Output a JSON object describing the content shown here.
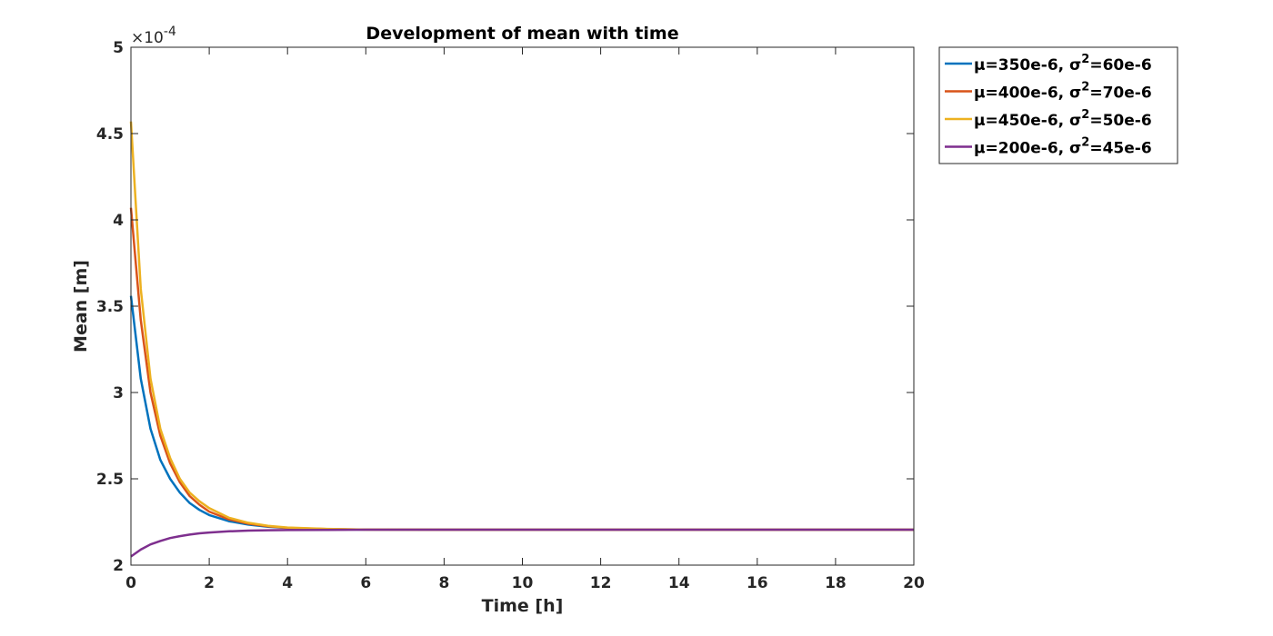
{
  "chart_data": {
    "type": "line",
    "title": "Development of mean with time",
    "xlabel": "Time [h]",
    "ylabel": "Mean [m]",
    "xlim": [
      0,
      20
    ],
    "ylim": [
      2,
      5
    ],
    "xticks": [
      0,
      2,
      4,
      6,
      8,
      10,
      12,
      14,
      16,
      18,
      20
    ],
    "yticks": [
      2,
      2.5,
      3,
      3.5,
      4,
      4.5,
      5
    ],
    "ytick_labels": [
      "2",
      "2.5",
      "3",
      "3.5",
      "4",
      "4.5",
      "5"
    ],
    "y_exponent_base": "×10",
    "y_exponent_power": "-4",
    "grid": false,
    "legend_position": "outside-top-right",
    "series": [
      {
        "mu_label": "μ=350e-6, ",
        "sigma_label": "σ",
        "sigma_power": "2",
        "tail": "=60e-6",
        "color": "#0072BD",
        "x": [
          0,
          0.25,
          0.5,
          0.75,
          1,
          1.25,
          1.5,
          1.75,
          2,
          2.5,
          3,
          3.5,
          4,
          5,
          6,
          8,
          10,
          12,
          14,
          16,
          18,
          20
        ],
        "y": [
          3.56,
          3.08,
          2.79,
          2.61,
          2.5,
          2.42,
          2.36,
          2.32,
          2.29,
          2.255,
          2.235,
          2.222,
          2.215,
          2.208,
          2.206,
          2.205,
          2.205,
          2.205,
          2.205,
          2.205,
          2.205,
          2.205
        ]
      },
      {
        "mu_label": "μ=400e-6, ",
        "sigma_label": "σ",
        "sigma_power": "2",
        "tail": "=70e-6",
        "color": "#D95319",
        "x": [
          0,
          0.25,
          0.5,
          0.75,
          1,
          1.25,
          1.5,
          1.75,
          2,
          2.5,
          3,
          3.5,
          4,
          5,
          6,
          8,
          10,
          12,
          14,
          16,
          18,
          20
        ],
        "y": [
          4.07,
          3.42,
          3.0,
          2.75,
          2.59,
          2.48,
          2.4,
          2.35,
          2.31,
          2.265,
          2.24,
          2.225,
          2.216,
          2.209,
          2.206,
          2.205,
          2.205,
          2.205,
          2.205,
          2.205,
          2.205,
          2.205
        ]
      },
      {
        "mu_label": "μ=450e-6, ",
        "sigma_label": "σ",
        "sigma_power": "2",
        "tail": "=50e-6",
        "color": "#EDB120",
        "x": [
          0,
          0.25,
          0.5,
          0.75,
          1,
          1.25,
          1.5,
          1.75,
          2,
          2.5,
          3,
          3.5,
          4,
          5,
          6,
          8,
          10,
          12,
          14,
          16,
          18,
          20
        ],
        "y": [
          4.57,
          3.6,
          3.08,
          2.79,
          2.62,
          2.5,
          2.42,
          2.37,
          2.33,
          2.275,
          2.245,
          2.228,
          2.218,
          2.21,
          2.206,
          2.205,
          2.205,
          2.205,
          2.205,
          2.205,
          2.205,
          2.205
        ]
      },
      {
        "mu_label": "μ=200e-6, ",
        "sigma_label": "σ",
        "sigma_power": "2",
        "tail": "=45e-6",
        "color": "#7E2F8E",
        "x": [
          0,
          0.25,
          0.5,
          0.75,
          1,
          1.25,
          1.5,
          1.75,
          2,
          2.5,
          3,
          3.5,
          4,
          5,
          6,
          8,
          10,
          12,
          14,
          16,
          18,
          20
        ],
        "y": [
          2.05,
          2.09,
          2.12,
          2.14,
          2.157,
          2.168,
          2.177,
          2.184,
          2.189,
          2.196,
          2.2,
          2.202,
          2.203,
          2.204,
          2.205,
          2.205,
          2.205,
          2.205,
          2.205,
          2.205,
          2.205,
          2.205
        ]
      }
    ]
  }
}
